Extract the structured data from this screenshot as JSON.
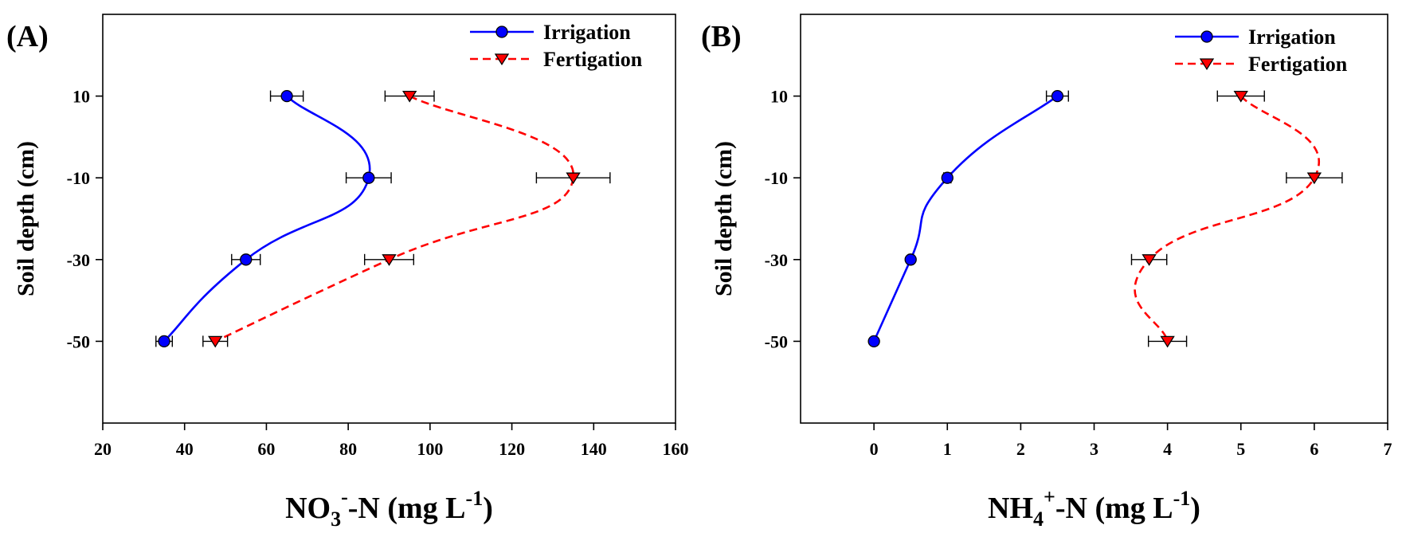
{
  "chart_data": [
    {
      "type": "line",
      "panel_label": "(A)",
      "xlabel_parts": {
        "main": "NO",
        "sub": "3",
        "sup": "-",
        "rest": "-N (mg L",
        "unit_sup": "-1",
        "close": ")"
      },
      "ylabel": "Soil depth (cm)",
      "xlim": [
        20,
        160
      ],
      "xticks": [
        20,
        40,
        60,
        80,
        100,
        120,
        140,
        160
      ],
      "ylim": [
        -70,
        30
      ],
      "yticks": [
        10,
        -10,
        -30,
        -50
      ],
      "legend_position": "top-right",
      "series": [
        {
          "name": "Irrigation",
          "marker": "circle",
          "color": "#0000ff",
          "linestyle": "solid",
          "x": [
            65,
            85,
            55,
            35
          ],
          "y": [
            10,
            -10,
            -30,
            -50
          ],
          "xerr": [
            4,
            5.5,
            3.5,
            2
          ]
        },
        {
          "name": "Fertigation",
          "marker": "triangle-down",
          "color": "#ff0000",
          "linestyle": "dashed",
          "x": [
            95,
            135,
            90,
            47.5
          ],
          "y": [
            10,
            -10,
            -30,
            -50
          ],
          "xerr": [
            6,
            9,
            6,
            3
          ]
        }
      ]
    },
    {
      "type": "line",
      "panel_label": "(B)",
      "xlabel_parts": {
        "main": "NH",
        "sub": "4",
        "sup": "+",
        "rest": "-N (mg L",
        "unit_sup": "-1",
        "close": ")"
      },
      "ylabel": "Soil depth (cm)",
      "xlim": [
        -1,
        7
      ],
      "xticks": [
        0,
        1,
        2,
        3,
        4,
        5,
        6,
        7
      ],
      "ylim": [
        -70,
        30
      ],
      "yticks": [
        10,
        -10,
        -30,
        -50
      ],
      "legend_position": "top-right",
      "series": [
        {
          "name": "Irrigation",
          "marker": "circle",
          "color": "#0000ff",
          "linestyle": "solid",
          "x": [
            2.5,
            1.0,
            0.5,
            0.0
          ],
          "y": [
            10,
            -10,
            -30,
            -50
          ],
          "xerr": [
            0.15,
            0.05,
            0.03,
            0.02
          ]
        },
        {
          "name": "Fertigation",
          "marker": "triangle-down",
          "color": "#ff0000",
          "linestyle": "dashed",
          "x": [
            5.0,
            6.0,
            3.75,
            4.0
          ],
          "y": [
            10,
            -10,
            -30,
            -50
          ],
          "xerr": [
            0.32,
            0.38,
            0.24,
            0.26
          ]
        }
      ]
    }
  ]
}
